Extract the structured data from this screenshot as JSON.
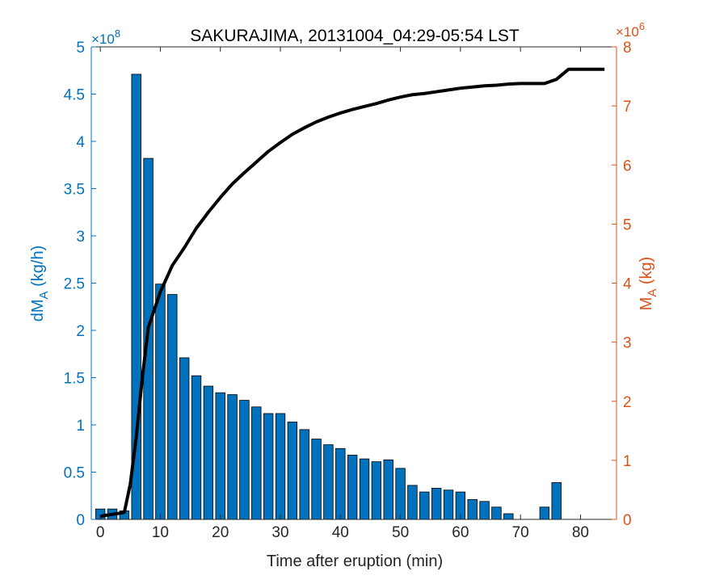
{
  "chart_data": {
    "type": "bar+line",
    "title": "SAKURAJIMA, 20131004_04:29-05:54 LST",
    "xlabel": "Time after eruption (min)",
    "ylabel_left": {
      "base": "dM",
      "sub": "A",
      "tail": " (kg/h)"
    },
    "ylabel_right": {
      "base": "M",
      "sub": "A",
      "tail": " (kg)"
    },
    "left_exponent": "8",
    "right_exponent": "6",
    "xlim": [
      -1.5,
      86
    ],
    "ylim_left": [
      0,
      5
    ],
    "ylim_right": [
      0,
      8
    ],
    "x_ticks": [
      0,
      10,
      20,
      30,
      40,
      50,
      60,
      70,
      80
    ],
    "y_left_ticks": [
      0,
      0.5,
      1,
      1.5,
      2,
      2.5,
      3,
      3.5,
      4,
      4.5,
      5
    ],
    "y_right_ticks": [
      0,
      1,
      2,
      3,
      4,
      5,
      6,
      7,
      8
    ],
    "colors": {
      "left_axis": "#0072BD",
      "right_axis": "#D95319",
      "bar_fill": "#0072BD",
      "line": "#000000"
    },
    "bars": {
      "name": "dMA (kg/h) x1e8",
      "x": [
        0,
        2,
        4,
        6,
        8,
        10,
        12,
        14,
        16,
        18,
        20,
        22,
        24,
        26,
        28,
        30,
        32,
        34,
        36,
        38,
        40,
        42,
        44,
        46,
        48,
        50,
        52,
        54,
        56,
        58,
        60,
        62,
        64,
        66,
        68,
        70,
        72,
        74,
        76,
        78,
        80,
        82
      ],
      "values": [
        0.11,
        0.11,
        0.09,
        4.71,
        3.82,
        2.49,
        2.38,
        1.71,
        1.52,
        1.41,
        1.34,
        1.32,
        1.26,
        1.19,
        1.12,
        1.12,
        1.03,
        0.95,
        0.85,
        0.79,
        0.75,
        0.68,
        0.64,
        0.61,
        0.63,
        0.54,
        0.36,
        0.29,
        0.33,
        0.31,
        0.29,
        0.21,
        0.19,
        0.13,
        0.06,
        0,
        0,
        0.13,
        0.39,
        0,
        0,
        0
      ]
    },
    "line": {
      "name": "MA (kg) x1e6",
      "x": [
        0,
        1,
        3,
        4,
        5,
        6,
        7,
        8,
        9,
        10,
        12,
        14,
        16,
        18,
        20,
        22,
        24,
        26,
        28,
        30,
        32,
        34,
        36,
        38,
        40,
        42,
        44,
        46,
        48,
        50,
        52,
        54,
        56,
        58,
        60,
        62,
        64,
        66,
        68,
        70,
        72,
        74,
        76,
        78,
        80,
        82,
        84
      ],
      "values": [
        0.05,
        0.07,
        0.1,
        0.12,
        0.6,
        1.4,
        2.4,
        3.25,
        3.55,
        3.85,
        4.3,
        4.6,
        4.93,
        5.2,
        5.45,
        5.68,
        5.87,
        6.05,
        6.23,
        6.38,
        6.52,
        6.63,
        6.73,
        6.81,
        6.88,
        6.94,
        6.99,
        7.04,
        7.1,
        7.15,
        7.19,
        7.21,
        7.24,
        7.27,
        7.3,
        7.32,
        7.34,
        7.35,
        7.37,
        7.38,
        7.38,
        7.38,
        7.45,
        7.62,
        7.62,
        7.62,
        7.62
      ]
    }
  }
}
